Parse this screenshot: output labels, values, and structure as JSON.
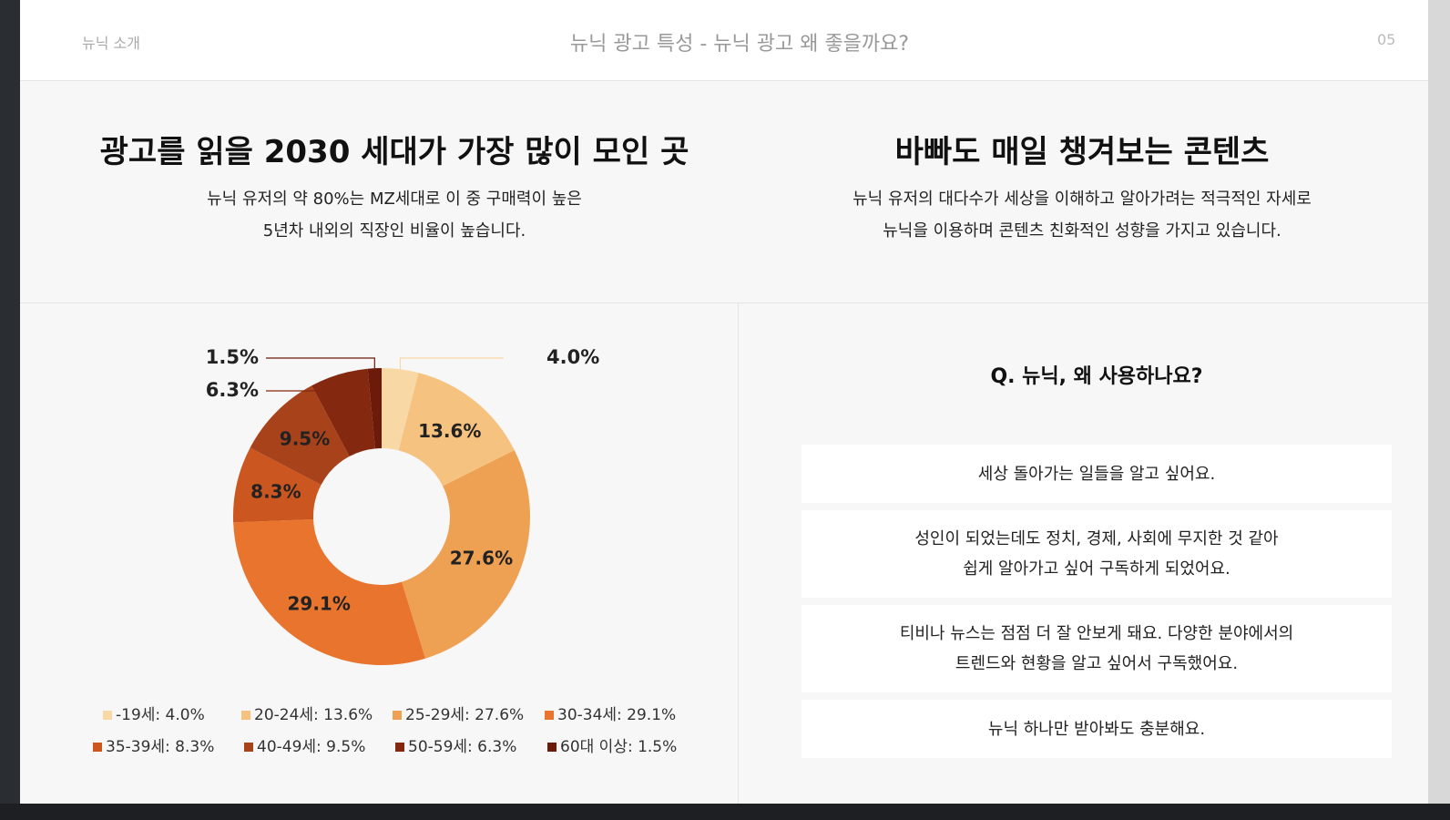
{
  "header": {
    "section": "뉴닉 소개",
    "title": "뉴닉 광고 특성 - 뉴닉 광고 왜 좋을까요?",
    "page": "05"
  },
  "left": {
    "heading": "광고를 읽을 2030 세대가 가장 많이 모인 곳",
    "description": [
      "뉴닉 유저의 약 80%는 MZ세대로 이 중 구매력이 높은",
      "5년차 내외의 직장인 비율이 높습니다."
    ]
  },
  "right": {
    "heading": "바빠도 매일 챙겨보는 콘텐츠",
    "description": [
      "뉴닉 유저의 대다수가 세상을 이해하고 알아가려는 적극적인 자세로",
      "뉴닉을 이용하며 콘텐츠 친화적인 성향을 가지고 있습니다."
    ],
    "question": "Q. 뉴닉, 왜 사용하나요?",
    "answers": [
      [
        "세상 돌아가는 일들을 알고 싶어요."
      ],
      [
        "성인이 되었는데도 정치, 경제, 사회에 무지한 것 같아",
        "쉽게 알아가고 싶어 구독하게 되었어요."
      ],
      [
        "티비나 뉴스는 점점 더 잘 안보게 돼요. 다양한 분야에서의",
        "트렌드와 현황을 알고 싶어서 구독했어요."
      ],
      [
        "뉴닉 하나만 받아봐도 충분해요."
      ]
    ]
  },
  "chart_data": {
    "type": "donut",
    "categories": [
      "-19세: 4.0%",
      "20-24세: 13.6%",
      "25-29세: 27.6%",
      "30-34세: 29.1%",
      "35-39세: 8.3%",
      "40-49세: 9.5%",
      "50-59세: 6.3%",
      "60대 이상: 1.5%"
    ],
    "values": [
      4.0,
      13.6,
      27.6,
      29.1,
      8.3,
      9.5,
      6.3,
      1.5
    ],
    "value_labels": [
      "4.0%",
      "13.6%",
      "27.6%",
      "29.1%",
      "8.3%",
      "9.5%",
      "6.3%",
      "1.5%"
    ],
    "colors": [
      "#f8d8a4",
      "#f5c27f",
      "#efa153",
      "#e8742e",
      "#cb561f",
      "#a8421a",
      "#84280f",
      "#6c1b0a"
    ]
  }
}
